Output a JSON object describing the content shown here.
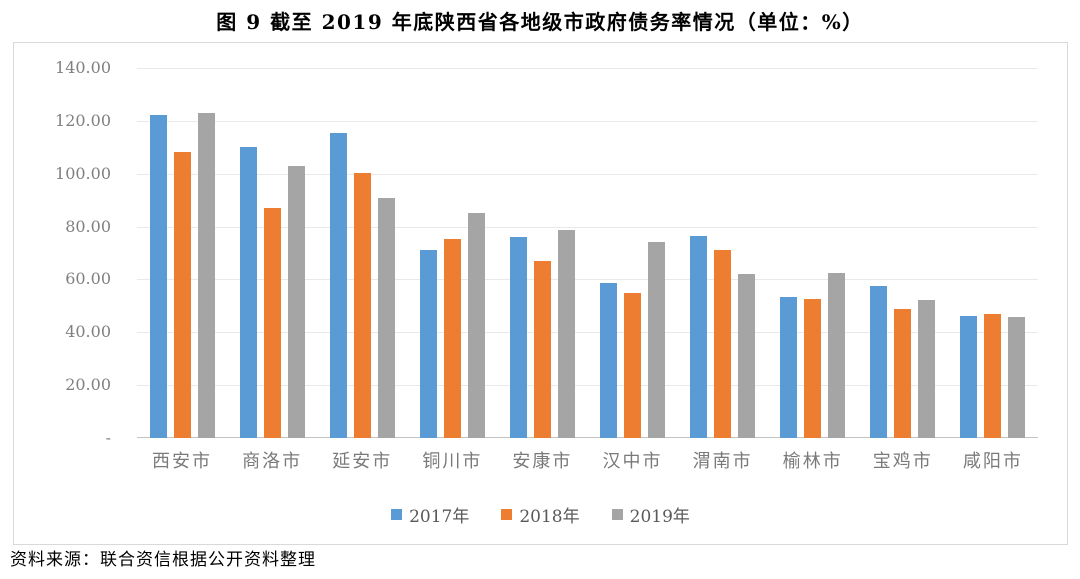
{
  "title": "图 9  截至 2019 年底陕西省各地级市政府债务率情况（单位：%）",
  "source_note": "资料来源：联合资信根据公开资料整理",
  "chart_data": {
    "type": "bar",
    "title": "图 9  截至 2019 年底陕西省各地级市政府债务率情况（单位：%）",
    "unit": "%",
    "categories": [
      "西安市",
      "商洛市",
      "延安市",
      "铜川市",
      "安康市",
      "汉中市",
      "渭南市",
      "榆林市",
      "宝鸡市",
      "咸阳市"
    ],
    "series": [
      {
        "name": "2017年",
        "color": "#5B9BD5",
        "values": [
          122.4,
          110.2,
          115.4,
          71.0,
          76.0,
          58.5,
          76.5,
          53.2,
          57.5,
          46.2
        ]
      },
      {
        "name": "2018年",
        "color": "#ED7D31",
        "values": [
          108.4,
          87.0,
          100.3,
          75.2,
          67.0,
          55.0,
          71.0,
          52.5,
          48.8,
          46.8
        ]
      },
      {
        "name": "2019年",
        "color": "#A5A5A5",
        "values": [
          123.1,
          103.1,
          90.9,
          85.3,
          78.6,
          74.2,
          62.0,
          62.4,
          52.2,
          45.8
        ]
      }
    ],
    "ylim": [
      0,
      140
    ],
    "ytick_step": 20,
    "ytick_labels": [
      "140.00",
      "120.00",
      "100.00",
      "80.00",
      "60.00",
      "40.00",
      "20.00",
      "-"
    ],
    "grid": true,
    "legend_position": "bottom",
    "xlabel": "",
    "ylabel": ""
  }
}
